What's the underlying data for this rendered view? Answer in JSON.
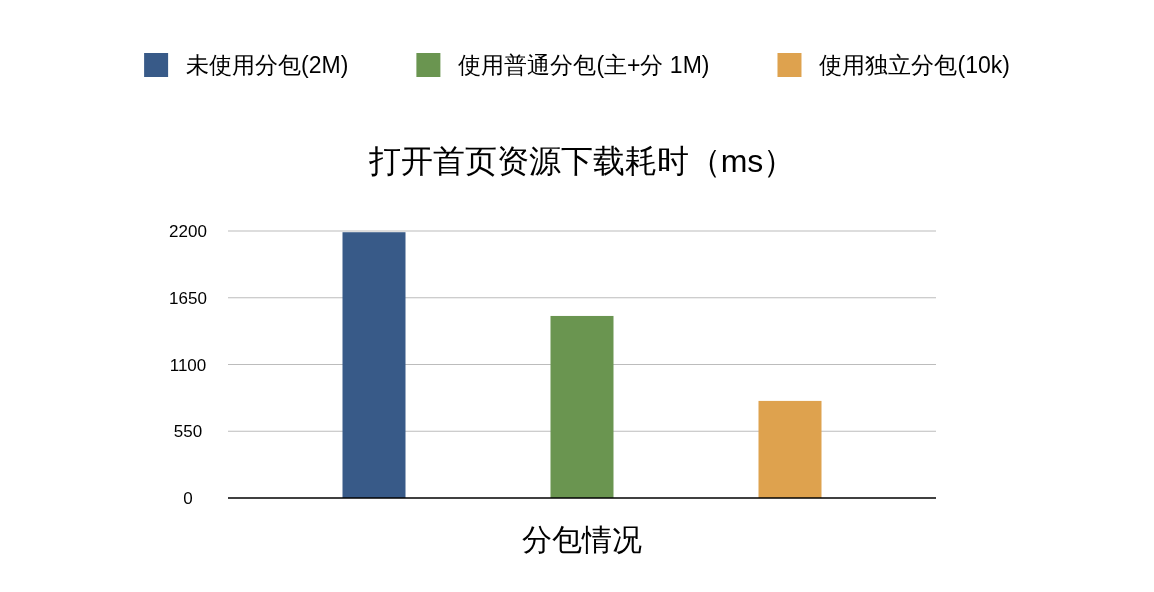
{
  "chart_data": {
    "type": "bar",
    "title": "打开首页资源下载耗时（ms）",
    "xlabel": "分包情况",
    "categories": [
      null
    ],
    "series": [
      {
        "name": "未使用分包(2M)",
        "color": "#385a88",
        "values": [
          2190
        ]
      },
      {
        "name": "使用普通分包(主+分 1M)",
        "color": "#6a9550",
        "values": [
          1500
        ]
      },
      {
        "name": "使用独立分包(10k)",
        "color": "#dea24e",
        "values": [
          800
        ]
      }
    ],
    "ylim": [
      0,
      2200
    ],
    "yticks": [
      0,
      550,
      1100,
      1650,
      2200
    ],
    "grid": "y",
    "legend": "top"
  }
}
